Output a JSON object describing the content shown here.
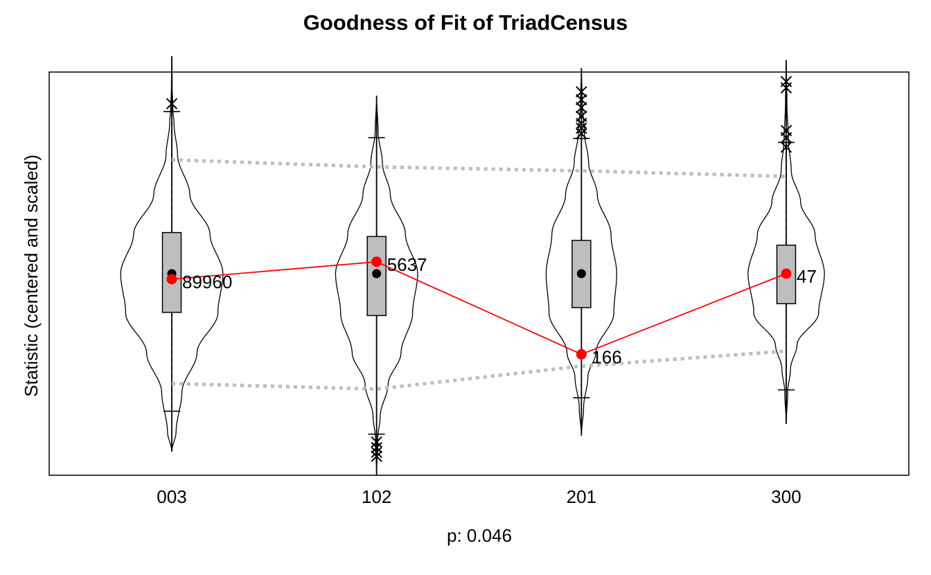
{
  "chart_data": {
    "type": "violin",
    "title": "Goodness of Fit of TriadCensus",
    "xlabel": "p: 0.046",
    "ylabel": "Statistic (centered and scaled)",
    "categories": [
      "003",
      "102",
      "201",
      "300"
    ],
    "ylim": [
      -2.55,
      2.55
    ],
    "observed": {
      "values": [
        -0.07,
        0.15,
        -1.02,
        0.0
      ],
      "labels": [
        "89960",
        "5637",
        "166",
        "47"
      ],
      "color": "#ff0000"
    },
    "simulated": [
      {
        "category": "003",
        "median": 0.0,
        "q1": -0.49,
        "q3": 0.52,
        "whisker_low": -1.74,
        "whisker_high": 2.05,
        "outliers": [
          2.15
        ],
        "density_y": [
          -2.25,
          -2.0,
          -1.5,
          -1.0,
          -0.5,
          0.0,
          0.5,
          1.0,
          1.5,
          1.9,
          2.1,
          2.35,
          2.75
        ],
        "density_w": [
          0.0,
          0.06,
          0.14,
          0.35,
          0.64,
          0.71,
          0.53,
          0.25,
          0.08,
          0.03,
          0.015,
          0.005,
          0.0
        ]
      },
      {
        "category": "102",
        "median": 0.0,
        "q1": -0.53,
        "q3": 0.47,
        "whisker_low": -2.03,
        "whisker_high": 1.72,
        "outliers": [
          -2.13,
          -2.2,
          -2.26,
          -2.31
        ],
        "density_y": [
          -2.55,
          -2.1,
          -1.8,
          -1.4,
          -1.0,
          -0.5,
          0.0,
          0.5,
          1.0,
          1.4,
          1.8,
          2.25
        ],
        "density_w": [
          0.0,
          0.015,
          0.05,
          0.16,
          0.34,
          0.5,
          0.57,
          0.4,
          0.19,
          0.08,
          0.02,
          0.0
        ]
      },
      {
        "category": "201",
        "median": 0.0,
        "q1": -0.43,
        "q3": 0.42,
        "whisker_low": -1.57,
        "whisker_high": 1.71,
        "outliers": [
          1.77,
          1.84,
          1.9,
          1.99,
          2.1,
          2.2,
          2.3
        ],
        "density_y": [
          -2.05,
          -1.7,
          -1.3,
          -1.0,
          -0.5,
          0.0,
          0.5,
          1.0,
          1.4,
          1.8,
          2.15,
          2.6
        ],
        "density_w": [
          0.0,
          0.03,
          0.09,
          0.2,
          0.45,
          0.49,
          0.41,
          0.22,
          0.1,
          0.04,
          0.012,
          0.0
        ]
      },
      {
        "category": "300",
        "median": 0.0,
        "q1": -0.38,
        "q3": 0.36,
        "whisker_low": -1.47,
        "whisker_high": 1.66,
        "outliers": [
          1.6,
          1.72,
          1.81,
          2.35,
          2.43
        ],
        "density_y": [
          -1.9,
          -1.5,
          -1.2,
          -0.9,
          -0.5,
          0.0,
          0.5,
          0.9,
          1.3,
          1.7,
          2.15,
          2.7
        ],
        "density_w": [
          0.0,
          0.02,
          0.06,
          0.15,
          0.45,
          0.53,
          0.4,
          0.2,
          0.07,
          0.03,
          0.01,
          0.0
        ]
      }
    ],
    "interval_upper": [
      1.44,
      1.35,
      1.3,
      1.23
    ],
    "interval_lower": [
      -1.39,
      -1.46,
      -1.17,
      -0.98
    ],
    "colors": {
      "box_fill": "#bebebe",
      "interval_line": "#bebebe",
      "observed_line": "#ff0000",
      "outline": "#000000"
    }
  }
}
